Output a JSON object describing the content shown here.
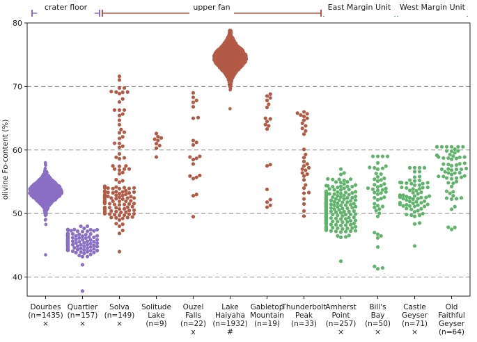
{
  "chart_data": {
    "type": "scatter",
    "subtype": "swarm (beeswarm) plot",
    "title": "",
    "xlabel": "",
    "ylabel": "olivine Fo-content (%)",
    "ylim": [
      37,
      80
    ],
    "yticks": [
      40,
      50,
      60,
      70,
      80
    ],
    "grid": {
      "horizontal_dashed_at": [
        40,
        50,
        60,
        70
      ]
    },
    "colors": {
      "crater_floor": "#8a6fc4",
      "upper_fan": "#b35a47",
      "margin": "#5fb36a"
    },
    "groups": [
      {
        "label": "crater floor",
        "from": 0,
        "to": 1,
        "color": "#8a6fc4"
      },
      {
        "label": "upper fan",
        "from": 2,
        "to": 7,
        "color": "#b35a47"
      },
      {
        "label": "East Margin Unit",
        "from": 8,
        "to": 9,
        "color": "#5fb36a"
      },
      {
        "label": "West Margin Unit",
        "from": 10,
        "to": 11,
        "color": "#5fb36a"
      }
    ],
    "categories": [
      {
        "lines": [
          "Dourbes",
          "(n=1435)"
        ],
        "marker": "×",
        "color": "#8a6fc4",
        "n": 1435,
        "median": 53.5,
        "spread": 1.3,
        "min": 43.5,
        "max": 58.0,
        "shape": "dense"
      },
      {
        "lines": [
          "Quartier",
          "(n=157)"
        ],
        "marker": "×",
        "color": "#8a6fc4",
        "n": 157,
        "median": 45.6,
        "spread": 1.1,
        "min": 37.8,
        "max": 48.0,
        "shape": "dense"
      },
      {
        "lines": [
          "Solva",
          "(n=149)"
        ],
        "marker": "×",
        "color": "#b35a47",
        "n": 149,
        "median": 52.0,
        "spread": 2.0,
        "min": 44.0,
        "max": 71.6,
        "shape": "skewed"
      },
      {
        "lines": [
          "Solitude",
          "Lake",
          "(n=9)"
        ],
        "marker": "",
        "color": "#b35a47",
        "n": 9,
        "values": [
          58.9,
          60.3,
          60.7,
          61.0,
          61.5,
          61.7,
          61.9,
          62.1,
          62.6
        ]
      },
      {
        "lines": [
          "Ouzel",
          "Falls",
          "(n=22)"
        ],
        "marker": "x",
        "color": "#b35a47",
        "n": 22,
        "values": [
          49.5,
          52.8,
          53.0,
          55.5,
          55.7,
          55.9,
          56.0,
          57.8,
          58.5,
          58.7,
          58.9,
          59.0,
          60.8,
          61.2,
          61.5,
          65.0,
          65.1,
          66.8,
          67.5,
          67.8,
          68.3,
          69.0
        ]
      },
      {
        "lines": [
          "Lake",
          "Haiyaha",
          "(n=1932)"
        ],
        "marker": "#",
        "color": "#b35a47",
        "n": 1932,
        "median": 74.5,
        "spread": 1.6,
        "min": 66.5,
        "max": 78.8,
        "shape": "dense"
      },
      {
        "lines": [
          "Gabletop",
          "Mountain",
          "(n=19)"
        ],
        "marker": "",
        "color": "#b35a47",
        "n": 19,
        "values": [
          51.0,
          51.3,
          51.8,
          52.2,
          53.8,
          57.5,
          57.7,
          63.3,
          63.8,
          64.0,
          64.5,
          64.9,
          65.0,
          66.7,
          67.2,
          67.8,
          68.2,
          68.5,
          68.8
        ]
      },
      {
        "lines": [
          "Thunderbolt",
          "Peak",
          "(n=33)"
        ],
        "marker": "",
        "color": "#b35a47",
        "n": 33,
        "values": [
          49.6,
          50.4,
          51.5,
          52.3,
          53.2,
          53.3,
          54.0,
          54.5,
          55.3,
          55.9,
          56.2,
          56.4,
          56.8,
          57.0,
          57.2,
          57.5,
          57.8,
          58.2,
          58.8,
          59.3,
          60.1,
          62.5,
          63.0,
          63.4,
          63.8,
          64.2,
          64.7,
          65.0,
          65.3,
          65.5,
          65.7,
          65.8,
          66.0
        ]
      },
      {
        "lines": [
          "Amherst",
          "Point",
          "(n=257)"
        ],
        "marker": "×",
        "color": "#5fb36a",
        "n": 257,
        "median": 50.8,
        "spread": 2.0,
        "min": 42.5,
        "max": 57.0,
        "shape": "normal"
      },
      {
        "lines": [
          "Bill's",
          "Bay",
          "(n=50)"
        ],
        "marker": "×",
        "color": "#5fb36a",
        "n": 50,
        "median": 54.5,
        "spread": 3.0,
        "min": 41.3,
        "max": 59.0,
        "shape": "skewed-low"
      },
      {
        "lines": [
          "Castle",
          "Geyser",
          "(n=71)"
        ],
        "marker": "×",
        "color": "#5fb36a",
        "n": 71,
        "median": 53.0,
        "spread": 2.3,
        "min": 44.9,
        "max": 57.2,
        "shape": "normal"
      },
      {
        "lines": [
          "Old",
          "Faithful",
          "Geyser",
          "(n=64)"
        ],
        "marker": "",
        "color": "#5fb36a",
        "n": 64,
        "median": 58.0,
        "spread": 2.3,
        "min": 47.5,
        "max": 60.5,
        "shape": "skewed-low"
      }
    ]
  }
}
